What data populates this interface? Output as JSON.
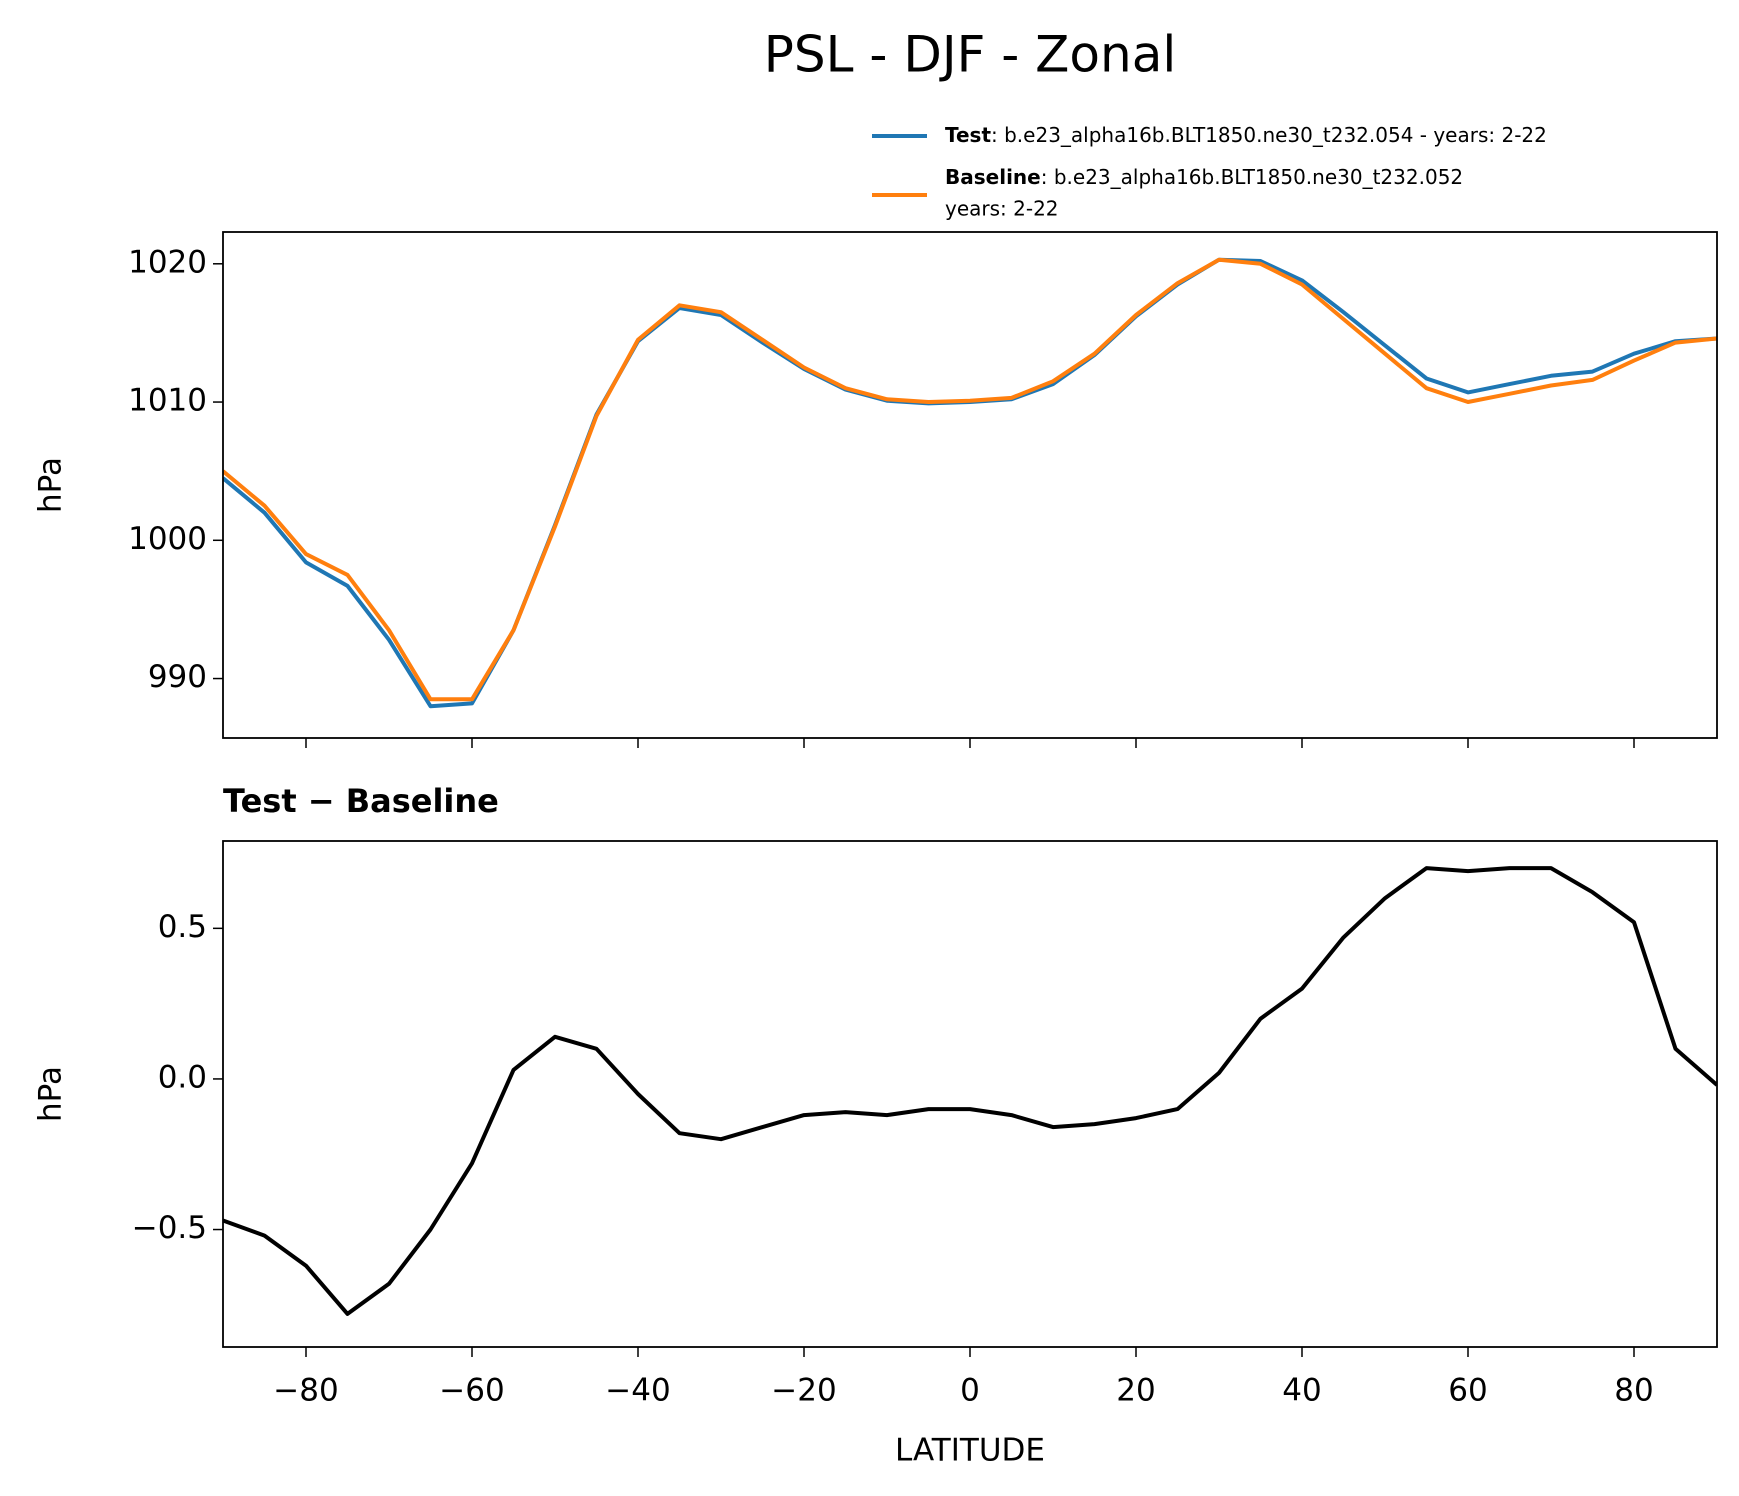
{
  "title": "PSL - DJF - Zonal",
  "chart_data": [
    {
      "type": "line",
      "ylabel": "hPa",
      "x": [
        -90,
        -85,
        -80,
        -75,
        -70,
        -65,
        -60,
        -55,
        -50,
        -45,
        -40,
        -35,
        -30,
        -25,
        -20,
        -15,
        -10,
        -5,
        0,
        5,
        10,
        15,
        20,
        25,
        30,
        35,
        40,
        45,
        50,
        55,
        60,
        65,
        70,
        75,
        80,
        85,
        90
      ],
      "series": [
        {
          "name": "Test",
          "description": [
            ": b.e23_alpha16b.BLT1850.ne30_t232.054 - years: 2-22"
          ],
          "color": "#1f77b4",
          "values": [
            1004.5,
            1002,
            998.4,
            996.7,
            992.8,
            988,
            988.2,
            993.5,
            1001.1,
            1009.1,
            1014.4,
            1016.8,
            1016.3,
            1014.3,
            1012.4,
            1010.9,
            1010.1,
            1009.9,
            1010,
            1010.2,
            1011.3,
            1013.4,
            1016.2,
            1018.5,
            1020.3,
            1020.2,
            1018.8,
            1016.5,
            1014.1,
            1011.7,
            1010.7,
            1011.3,
            1011.9,
            1012.2,
            1013.5,
            1014.4,
            1014.6
          ]
        },
        {
          "name": "Baseline",
          "description": [
            ": b.e23_alpha16b.BLT1850.ne30_t232.052",
            "years: 2-22"
          ],
          "color": "#ff7f0e",
          "values": [
            1005,
            1002.5,
            999,
            997.5,
            993.5,
            988.5,
            988.5,
            993.5,
            1001,
            1009,
            1014.5,
            1017,
            1016.5,
            1014.5,
            1012.5,
            1011,
            1010.2,
            1010,
            1010.1,
            1010.3,
            1011.5,
            1013.5,
            1016.3,
            1018.6,
            1020.3,
            1020,
            1018.5,
            1016,
            1013.5,
            1011,
            1010,
            1010.6,
            1011.2,
            1011.6,
            1013,
            1014.3,
            1014.6
          ]
        }
      ],
      "xlim": [
        -90,
        90
      ],
      "xticks": [
        -80,
        -60,
        -40,
        -20,
        0,
        20,
        40,
        60,
        80
      ],
      "ylim": [
        985.7,
        1022.3
      ],
      "yticks": [
        990,
        1000,
        1010,
        1020
      ]
    },
    {
      "type": "line",
      "title": "Test − Baseline",
      "xlabel": "LATITUDE",
      "ylabel": "hPa",
      "x": [
        -90,
        -85,
        -80,
        -75,
        -70,
        -65,
        -60,
        -55,
        -50,
        -45,
        -40,
        -35,
        -30,
        -25,
        -20,
        -15,
        -10,
        -5,
        0,
        5,
        10,
        15,
        20,
        25,
        30,
        35,
        40,
        45,
        50,
        55,
        60,
        65,
        70,
        75,
        80,
        85,
        90
      ],
      "series": [
        {
          "color": "#000000",
          "values": [
            -0.47,
            -0.52,
            -0.62,
            -0.78,
            -0.68,
            -0.5,
            -0.28,
            0.03,
            0.14,
            0.1,
            -0.05,
            -0.18,
            -0.2,
            -0.16,
            -0.12,
            -0.11,
            -0.12,
            -0.1,
            -0.1,
            -0.12,
            -0.16,
            -0.15,
            -0.13,
            -0.1,
            0.02,
            0.2,
            0.3,
            0.47,
            0.6,
            0.7,
            0.69,
            0.7,
            0.7,
            0.62,
            0.52,
            0.1,
            -0.02
          ]
        }
      ],
      "xlim": [
        -90,
        90
      ],
      "xticks": [
        {
          "value": -80,
          "label": "−80"
        },
        {
          "value": -60,
          "label": "−60"
        },
        {
          "value": -40,
          "label": "−40"
        },
        {
          "value": -20,
          "label": "−20"
        },
        0,
        20,
        40,
        60,
        80
      ],
      "ylim": [
        -0.89,
        0.79
      ],
      "yticks": [
        {
          "value": -0.5,
          "label": "−0.5"
        },
        {
          "value": 0,
          "label": "0.0"
        },
        0.5
      ]
    }
  ]
}
